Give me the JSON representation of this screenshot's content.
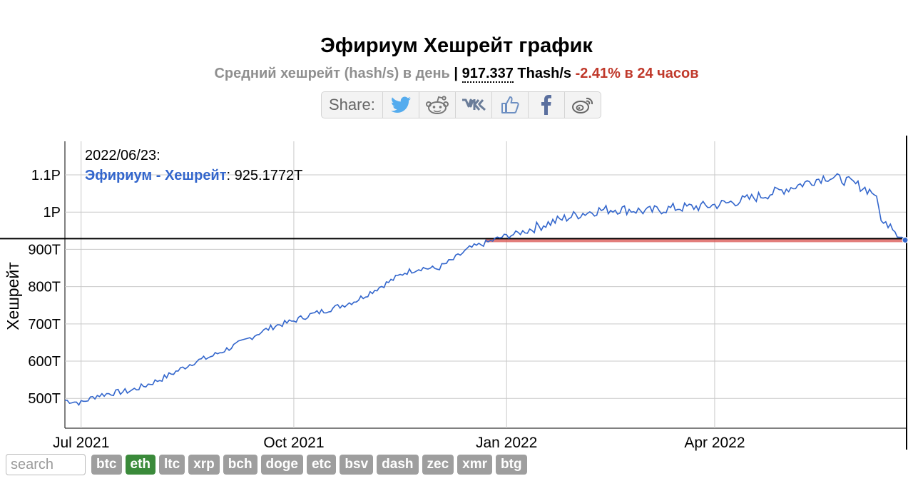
{
  "header": {
    "title": "Эфириум Хешрейт график",
    "subtitle_label": "Средний хешрейт (hash/s) в день",
    "subtitle_sep": "|",
    "current_value": "917.337",
    "current_unit": " Thash/s",
    "change": "-2.41% в 24 часов"
  },
  "share": {
    "label": "Share:",
    "buttons": [
      "twitter-icon",
      "reddit-icon",
      "vk-icon",
      "like-icon",
      "facebook-icon",
      "weibo-icon"
    ]
  },
  "tooltip": {
    "date": "2022/06/23:",
    "series": "Эфириум - Хешрейт",
    "sep": ": ",
    "value": "925.1772T"
  },
  "search": {
    "placeholder": "search"
  },
  "coins": [
    "btc",
    "eth",
    "ltc",
    "xrp",
    "bch",
    "doge",
    "etc",
    "bsv",
    "dash",
    "zec",
    "xmr",
    "btg"
  ],
  "active_coin": "eth",
  "colors": {
    "line": "#3366cc",
    "reference": "#d9534f",
    "active_coin": "#3a8a3a",
    "coin": "#9e9e9e",
    "change": "#c0392b"
  },
  "chart_data": {
    "type": "line",
    "ylabel": "Хешрейт",
    "yticks": [
      {
        "v": 500,
        "label": "500T"
      },
      {
        "v": 600,
        "label": "600T"
      },
      {
        "v": 700,
        "label": "700T"
      },
      {
        "v": 800,
        "label": "800T"
      },
      {
        "v": 900,
        "label": "900T"
      },
      {
        "v": 1000,
        "label": "1P"
      },
      {
        "v": 1100,
        "label": "1.1P"
      }
    ],
    "xticks": [
      {
        "date": "2021-07-01",
        "label": "Jul 2021"
      },
      {
        "date": "2021-10-01",
        "label": "Oct 2021"
      },
      {
        "date": "2022-01-01",
        "label": "Jan 2022"
      },
      {
        "date": "2022-04-01",
        "label": "Apr 2022"
      }
    ],
    "ylim": [
      420,
      1190
    ],
    "xlim": [
      "2021-06-24",
      "2022-06-23"
    ],
    "grid": true,
    "reference_value": 925,
    "series": [
      {
        "name": "Эфириум - Хешрейт",
        "points": [
          [
            "2021-06-24",
            495
          ],
          [
            "2021-07-01",
            488
          ],
          [
            "2021-07-08",
            508
          ],
          [
            "2021-07-15",
            515
          ],
          [
            "2021-07-22",
            520
          ],
          [
            "2021-07-29",
            535
          ],
          [
            "2021-08-05",
            553
          ],
          [
            "2021-08-12",
            575
          ],
          [
            "2021-08-19",
            598
          ],
          [
            "2021-08-26",
            612
          ],
          [
            "2021-09-02",
            632
          ],
          [
            "2021-09-09",
            652
          ],
          [
            "2021-09-16",
            676
          ],
          [
            "2021-09-23",
            695
          ],
          [
            "2021-09-30",
            706
          ],
          [
            "2021-10-07",
            722
          ],
          [
            "2021-10-14",
            735
          ],
          [
            "2021-10-21",
            748
          ],
          [
            "2021-10-28",
            763
          ],
          [
            "2021-11-04",
            788
          ],
          [
            "2021-11-11",
            812
          ],
          [
            "2021-11-18",
            838
          ],
          [
            "2021-11-25",
            850
          ],
          [
            "2021-12-02",
            848
          ],
          [
            "2021-12-09",
            873
          ],
          [
            "2021-12-16",
            903
          ],
          [
            "2021-12-23",
            917
          ],
          [
            "2021-12-30",
            933
          ],
          [
            "2022-01-06",
            943
          ],
          [
            "2022-01-13",
            958
          ],
          [
            "2022-01-20",
            972
          ],
          [
            "2022-01-27",
            985
          ],
          [
            "2022-02-03",
            997
          ],
          [
            "2022-02-10",
            1005
          ],
          [
            "2022-02-17",
            1008
          ],
          [
            "2022-02-24",
            1006
          ],
          [
            "2022-03-03",
            1002
          ],
          [
            "2022-03-10",
            1008
          ],
          [
            "2022-03-17",
            1012
          ],
          [
            "2022-03-24",
            1014
          ],
          [
            "2022-03-31",
            1018
          ],
          [
            "2022-04-07",
            1025
          ],
          [
            "2022-04-14",
            1033
          ],
          [
            "2022-04-21",
            1043
          ],
          [
            "2022-04-28",
            1055
          ],
          [
            "2022-05-05",
            1068
          ],
          [
            "2022-05-12",
            1082
          ],
          [
            "2022-05-19",
            1095
          ],
          [
            "2022-05-26",
            1088
          ],
          [
            "2022-06-02",
            1072
          ],
          [
            "2022-06-09",
            1052
          ],
          [
            "2022-06-13",
            965
          ],
          [
            "2022-06-16",
            975
          ],
          [
            "2022-06-19",
            940
          ],
          [
            "2022-06-23",
            925
          ]
        ]
      }
    ]
  }
}
